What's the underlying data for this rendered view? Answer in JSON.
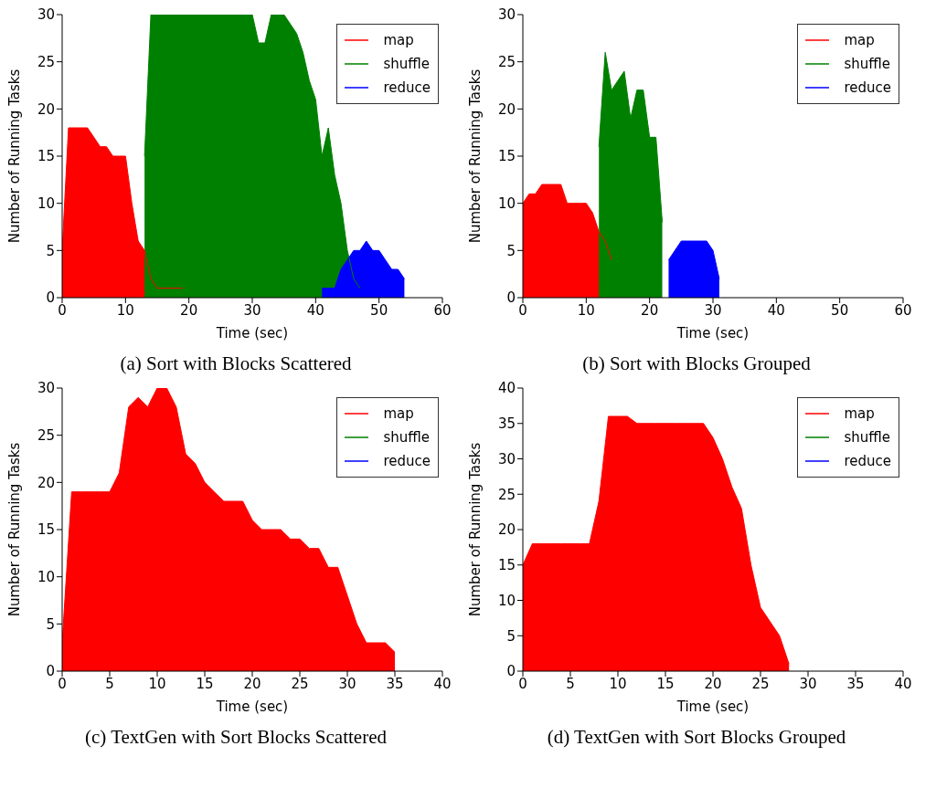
{
  "chart_data": [
    {
      "type": "area",
      "title": "(a) Sort with Blocks Scattered",
      "xlabel": "Time (sec)",
      "ylabel": "Number of Running Tasks",
      "xlim": [
        0,
        60
      ],
      "xticks": [
        0,
        10,
        20,
        30,
        40,
        50,
        60
      ],
      "ylim": [
        0,
        30
      ],
      "yticks": [
        0,
        5,
        10,
        15,
        20,
        25,
        30
      ],
      "legend": "top right",
      "series": [
        {
          "name": "map",
          "color": "#ff0000",
          "x": [
            0,
            1,
            2,
            3,
            4,
            5,
            6,
            7,
            8,
            9,
            10,
            11,
            12,
            13,
            14,
            15,
            16,
            17,
            18,
            19
          ],
          "values": [
            5,
            18,
            18,
            18,
            18,
            17,
            16,
            16,
            15,
            15,
            15,
            10,
            6,
            5,
            2,
            1,
            1,
            1,
            1,
            1
          ]
        },
        {
          "name": "shuffle",
          "color": "#008000",
          "x": [
            13,
            14,
            15,
            20,
            25,
            30,
            31,
            32,
            33,
            34,
            35,
            36,
            37,
            38,
            39,
            40,
            41,
            42,
            43,
            44,
            45,
            46,
            47
          ],
          "values": [
            15,
            30,
            30,
            30,
            30,
            30,
            27,
            27,
            30,
            30,
            30,
            29,
            28,
            26,
            23,
            21,
            15,
            18,
            13,
            10,
            5,
            2,
            1
          ]
        },
        {
          "name": "reduce",
          "color": "#0000ff",
          "x": [
            41,
            42,
            43,
            44,
            45,
            46,
            47,
            48,
            49,
            50,
            51,
            52,
            53,
            54
          ],
          "values": [
            1,
            1,
            1,
            3,
            4,
            5,
            5,
            6,
            5,
            5,
            4,
            3,
            3,
            2
          ]
        }
      ]
    },
    {
      "type": "area",
      "title": "(b) Sort with Blocks Grouped",
      "xlabel": "Time (sec)",
      "ylabel": "Number of Running Tasks",
      "xlim": [
        0,
        60
      ],
      "xticks": [
        0,
        10,
        20,
        30,
        40,
        50,
        60
      ],
      "ylim": [
        0,
        30
      ],
      "yticks": [
        0,
        5,
        10,
        15,
        20,
        25,
        30
      ],
      "legend": "top right",
      "series": [
        {
          "name": "map",
          "color": "#ff0000",
          "x": [
            0,
            1,
            2,
            3,
            4,
            5,
            6,
            7,
            8,
            9,
            10,
            11,
            12,
            13,
            14
          ],
          "values": [
            10,
            11,
            11,
            12,
            12,
            12,
            12,
            10,
            10,
            10,
            10,
            9,
            7,
            6,
            4
          ]
        },
        {
          "name": "shuffle",
          "color": "#008000",
          "x": [
            12,
            13,
            14,
            15,
            16,
            17,
            18,
            19,
            20,
            21,
            22
          ],
          "values": [
            16,
            26,
            22,
            23,
            24,
            19,
            22,
            22,
            17,
            17,
            8
          ]
        },
        {
          "name": "reduce",
          "color": "#0000ff",
          "x": [
            23,
            24,
            25,
            26,
            27,
            28,
            29,
            30,
            31
          ],
          "values": [
            4,
            5,
            6,
            6,
            6,
            6,
            6,
            5,
            2
          ]
        }
      ]
    },
    {
      "type": "area",
      "title": "(c) TextGen with Sort Blocks Scattered",
      "xlabel": "Time (sec)",
      "ylabel": "Number of Running Tasks",
      "xlim": [
        0,
        40
      ],
      "xticks": [
        0,
        5,
        10,
        15,
        20,
        25,
        30,
        35,
        40
      ],
      "ylim": [
        0,
        30
      ],
      "yticks": [
        0,
        5,
        10,
        15,
        20,
        25,
        30
      ],
      "legend": "top right",
      "series": [
        {
          "name": "map",
          "color": "#ff0000",
          "x": [
            0,
            1,
            2,
            3,
            4,
            5,
            6,
            7,
            8,
            9,
            10,
            11,
            12,
            13,
            14,
            15,
            16,
            17,
            18,
            19,
            20,
            21,
            22,
            23,
            24,
            25,
            26,
            27,
            28,
            29,
            30,
            31,
            32,
            33,
            34,
            35
          ],
          "values": [
            3,
            19,
            19,
            19,
            19,
            19,
            21,
            28,
            29,
            28,
            30,
            30,
            28,
            23,
            22,
            20,
            19,
            18,
            18,
            18,
            16,
            15,
            15,
            15,
            14,
            14,
            13,
            13,
            11,
            11,
            8,
            5,
            3,
            3,
            3,
            2
          ]
        },
        {
          "name": "shuffle",
          "color": "#008000"
        },
        {
          "name": "reduce",
          "color": "#0000ff"
        }
      ]
    },
    {
      "type": "area",
      "title": "(d) TextGen with Sort Blocks Grouped",
      "xlabel": "Time (sec)",
      "ylabel": "Number of Running Tasks",
      "xlim": [
        0,
        40
      ],
      "xticks": [
        0,
        5,
        10,
        15,
        20,
        25,
        30,
        35,
        40
      ],
      "ylim": [
        0,
        40
      ],
      "yticks": [
        0,
        5,
        10,
        15,
        20,
        25,
        30,
        35,
        40
      ],
      "legend": "top right",
      "series": [
        {
          "name": "map",
          "color": "#ff0000",
          "x": [
            0,
            1,
            2,
            3,
            4,
            5,
            6,
            7,
            8,
            9,
            10,
            11,
            12,
            13,
            14,
            15,
            16,
            17,
            18,
            19,
            20,
            21,
            22,
            23,
            24,
            25,
            26,
            27,
            28
          ],
          "values": [
            15,
            18,
            18,
            18,
            18,
            18,
            18,
            18,
            24,
            36,
            36,
            36,
            35,
            35,
            35,
            35,
            35,
            35,
            35,
            35,
            33,
            30,
            26,
            23,
            15,
            9,
            7,
            5,
            1
          ]
        },
        {
          "name": "shuffle",
          "color": "#008000"
        },
        {
          "name": "reduce",
          "color": "#0000ff"
        }
      ]
    }
  ]
}
